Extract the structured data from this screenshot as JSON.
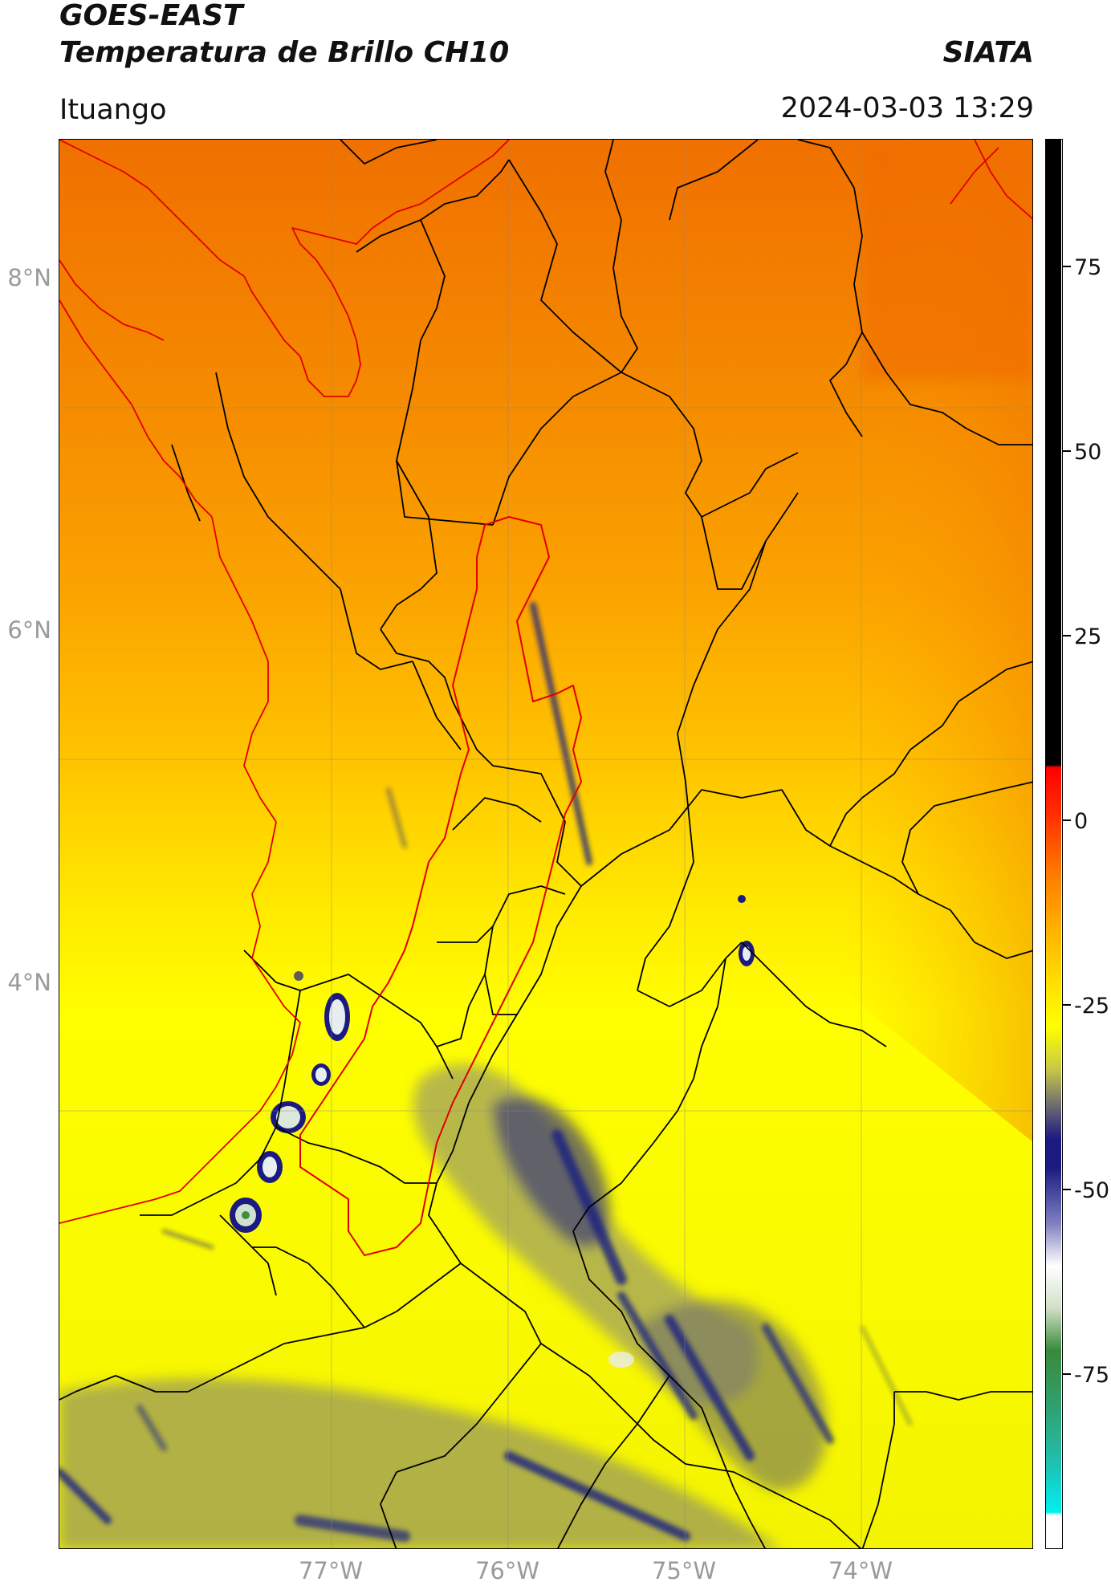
{
  "header": {
    "title_line1": "GOES-EAST",
    "title_line2": "Temperatura de Brillo CH10",
    "brand": "SIATA",
    "region": "Ituango",
    "timestamp": "2024-03-03 13:29"
  },
  "axes": {
    "lat_labels": [
      "8°N",
      "6°N",
      "4°N"
    ],
    "lon_labels": [
      "77°W",
      "76°W",
      "75°W",
      "74°W"
    ]
  },
  "colorbar": {
    "ticks": [
      "75",
      "50",
      "25",
      "0",
      "-25",
      "-50",
      "-75"
    ],
    "range": [
      -85,
      90
    ]
  },
  "colors": {
    "warm": "#f07800",
    "mid": "#ffb000",
    "cool": "#ffff00",
    "cloud": "#1a1a80",
    "coast": "#e00000",
    "border": "#000000"
  }
}
